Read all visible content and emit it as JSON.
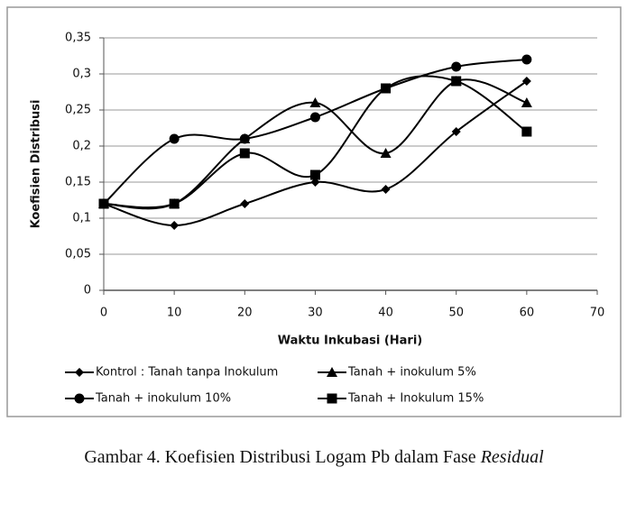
{
  "chart_data": {
    "type": "line",
    "x_label": "Waktu Inkubasi (Hari)",
    "y_label": "Koefisien Distribusi",
    "x": [
      0,
      10,
      20,
      30,
      40,
      50,
      60
    ],
    "xlim": [
      0,
      70
    ],
    "xticks": [
      0,
      10,
      20,
      30,
      40,
      50,
      60,
      70
    ],
    "ylim": [
      0,
      0.35
    ],
    "yticks": [
      0,
      {
        "value": 0.05,
        "label": "0,05"
      },
      {
        "value": 0.1,
        "label": "0,1"
      },
      {
        "value": 0.15,
        "label": "0,15"
      },
      {
        "value": 0.2,
        "label": "0,2"
      },
      {
        "value": 0.25,
        "label": "0,25"
      },
      {
        "value": 0.3,
        "label": "0,3"
      },
      {
        "value": 0.35,
        "label": "0,35"
      }
    ],
    "grid": true,
    "smooth": true,
    "series": [
      {
        "name": "Kontrol : Tanah tanpa Inokulum",
        "color": "#000000",
        "marker": "diamond",
        "values": [
          0.12,
          0.09,
          0.12,
          0.15,
          0.14,
          0.22,
          0.29
        ]
      },
      {
        "name": "Tanah + inokulum 5%",
        "color": "#000000",
        "marker": "triangle",
        "values": [
          0.12,
          0.12,
          0.21,
          0.26,
          0.19,
          0.29,
          0.26
        ]
      },
      {
        "name": "Tanah + inokulum 10%",
        "color": "#000000",
        "marker": "circle",
        "values": [
          0.12,
          0.21,
          0.21,
          0.24,
          0.28,
          0.31,
          0.32
        ]
      },
      {
        "name": "Tanah + Inokulum 15%",
        "color": "#000000",
        "marker": "square",
        "values": [
          0.12,
          0.12,
          0.19,
          0.16,
          0.28,
          0.29,
          0.22
        ]
      }
    ]
  },
  "caption": {
    "text": "Gambar 4. Koefisien Distribusi Logam Pb dalam Fase",
    "emphasis": "Residual"
  }
}
